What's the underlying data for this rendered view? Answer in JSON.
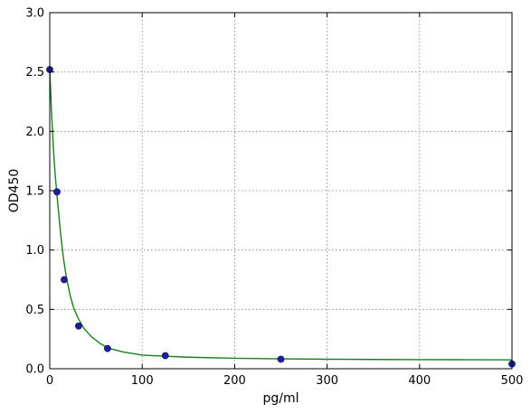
{
  "chart_data": {
    "type": "scatter",
    "xlabel": "pg/ml",
    "ylabel": "OD450",
    "xlim": [
      0,
      500
    ],
    "ylim": [
      0,
      3.0
    ],
    "x_ticks": [
      0,
      100,
      200,
      300,
      400,
      500
    ],
    "x_tick_labels": [
      "0",
      "100",
      "200",
      "300",
      "400",
      "500"
    ],
    "y_ticks": [
      0,
      0.5,
      1.0,
      1.5,
      2.0,
      2.5,
      3.0
    ],
    "y_tick_labels": [
      "0.0",
      "0.5",
      "1.0",
      "1.5",
      "2.0",
      "2.5",
      "3.0"
    ],
    "grid": true,
    "series": [
      {
        "kind": "points",
        "color": "#1f1f9e",
        "x": [
          0,
          7.8,
          15.6,
          31.2,
          62.5,
          125,
          250,
          500
        ],
        "y": [
          2.52,
          1.49,
          0.75,
          0.36,
          0.17,
          0.11,
          0.08,
          0.04
        ]
      },
      {
        "kind": "fit-curve",
        "color": "#1a7f1a",
        "x": [
          0,
          2,
          4,
          6,
          8,
          10,
          12,
          15,
          18,
          22,
          26,
          31,
          37,
          45,
          55,
          65,
          80,
          100,
          125,
          150,
          200,
          250,
          300,
          350,
          400,
          450,
          500
        ],
        "y": [
          2.52,
          2.15,
          1.85,
          1.62,
          1.45,
          1.28,
          1.12,
          0.92,
          0.77,
          0.62,
          0.51,
          0.42,
          0.34,
          0.27,
          0.21,
          0.17,
          0.14,
          0.115,
          0.105,
          0.097,
          0.088,
          0.083,
          0.08,
          0.078,
          0.077,
          0.076,
          0.075
        ]
      }
    ]
  }
}
